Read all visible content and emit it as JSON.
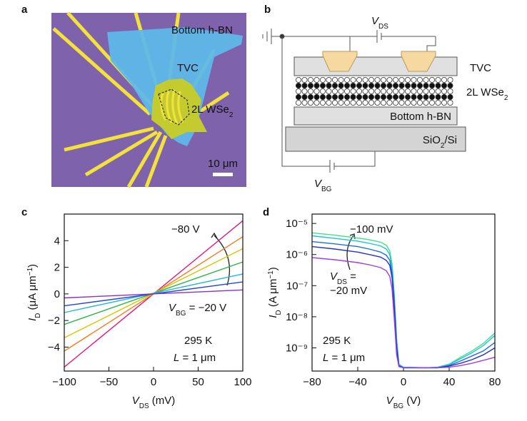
{
  "micrograph": {
    "label": "a",
    "labels": [
      [
        {
          "t": "Bottom h-BN"
        }
      ],
      [
        {
          "t": "TVC"
        }
      ],
      [
        {
          "t": "2L WSe"
        },
        {
          "t": "2",
          "s": "sub"
        }
      ]
    ],
    "scale_bar": [
      {
        "t": "10 μm"
      }
    ]
  },
  "schematic": {
    "label": "b",
    "labels": [
      [
        {
          "t": "V",
          "i": true
        },
        {
          "t": "DS",
          "s": "sub"
        }
      ],
      [
        {
          "t": "TVC"
        }
      ],
      [
        {
          "t": "2L WSe"
        },
        {
          "t": "2",
          "s": "sub"
        }
      ],
      [
        {
          "t": "Bottom h-BN"
        }
      ],
      [
        {
          "t": "SiO"
        },
        {
          "t": "2",
          "s": "sub"
        },
        {
          "t": "/Si"
        }
      ],
      [
        {
          "t": "V",
          "i": true
        },
        {
          "t": "BG",
          "s": "sub"
        }
      ]
    ]
  },
  "chart_data": [
    {
      "type": "line",
      "label": "c",
      "xlabel": [
        {
          "t": "V",
          "i": true
        },
        {
          "t": "DS",
          "s": "sub"
        },
        {
          "t": " (mV)"
        }
      ],
      "ylabel": [
        {
          "t": "I",
          "i": true
        },
        {
          "t": "D",
          "s": "sub"
        },
        {
          "t": " (μA μm"
        },
        {
          "t": "−1",
          "s": "super"
        },
        {
          "t": ")"
        }
      ],
      "x": [
        -100,
        100
      ],
      "series": [
        {
          "color": "#e8177c",
          "values": [
            -5.5,
            5.5
          ]
        },
        {
          "color": "#f47b20",
          "values": [
            -4.3,
            4.3
          ]
        },
        {
          "color": "#d7c600",
          "values": [
            -3.3,
            3.4
          ]
        },
        {
          "color": "#2db34a",
          "values": [
            -2.3,
            2.4
          ]
        },
        {
          "color": "#25b7d8",
          "values": [
            -1.4,
            1.5
          ]
        },
        {
          "color": "#2748d6",
          "values": [
            -0.9,
            0.9
          ]
        },
        {
          "color": "#8b2fc9",
          "values": [
            -0.3,
            0.3
          ]
        }
      ],
      "xlim": [
        -100,
        100
      ],
      "xticks": [
        {
          "value": -100,
          "label": "−100"
        },
        {
          "value": -50,
          "label": "−50"
        },
        0,
        50,
        100
      ],
      "ylim": [
        -5.8,
        6
      ],
      "yticks": [
        {
          "value": -4,
          "label": "−4"
        },
        {
          "value": -2,
          "label": "−2"
        },
        0,
        2,
        4
      ],
      "annotations": [
        [
          {
            "t": "−80 V"
          }
        ],
        [
          {
            "t": "V",
            "i": true
          },
          {
            "t": "BG",
            "s": "sub"
          },
          {
            "t": " = −20 V"
          }
        ],
        [
          {
            "t": "295 K"
          }
        ],
        [
          {
            "t": "L",
            "i": true
          },
          {
            "t": " = 1 μm"
          }
        ]
      ]
    },
    {
      "type": "line",
      "label": "d",
      "log": true,
      "xlabel": [
        {
          "t": "V",
          "i": true
        },
        {
          "t": "BG",
          "s": "sub"
        },
        {
          "t": " (V)"
        }
      ],
      "ylabel": [
        {
          "t": "I",
          "i": true
        },
        {
          "t": "D",
          "s": "sub"
        },
        {
          "t": " (A μm"
        },
        {
          "t": "−1",
          "s": "super"
        },
        {
          "t": ")"
        }
      ],
      "x": [
        -80,
        -60,
        -40,
        -30,
        -20,
        -15,
        -12,
        -10,
        -8,
        -6,
        -4,
        0,
        20,
        30,
        40,
        50,
        60,
        70,
        80
      ],
      "series": [
        {
          "color": "#3de08a",
          "values": [
            5e-06,
            4.2e-06,
            3.4e-06,
            3e-06,
            2.5e-06,
            2e-06,
            1.3e-06,
            5e-07,
            5e-08,
            2e-09,
            3e-10,
            2.4e-10,
            2.3e-10,
            2.4e-10,
            3e-10,
            5e-10,
            8e-10,
            1.4e-09,
            3e-09
          ]
        },
        {
          "color": "#1fc3d0",
          "values": [
            4e-06,
            3.3e-06,
            2.7e-06,
            2.3e-06,
            1.9e-06,
            1.5e-06,
            1e-06,
            4e-07,
            4e-08,
            1.8e-09,
            2.9e-10,
            2.4e-10,
            2.3e-10,
            2.4e-10,
            2.9e-10,
            4.5e-10,
            7e-10,
            1.2e-09,
            2.5e-09
          ]
        },
        {
          "color": "#1e6ee6",
          "values": [
            2.6e-06,
            2.2e-06,
            1.8e-06,
            1.5e-06,
            1.2e-06,
            9.5e-07,
            6.5e-07,
            2.6e-07,
            2.6e-08,
            1.3e-09,
            2.7e-10,
            2.3e-10,
            2.3e-10,
            2.3e-10,
            2.7e-10,
            3.8e-10,
            5.5e-10,
            8e-10,
            1.5e-09
          ]
        },
        {
          "color": "#2532c8",
          "values": [
            1.8e-06,
            1.5e-06,
            1.2e-06,
            1e-06,
            8.3e-07,
            6.5e-07,
            4.5e-07,
            1.8e-07,
            1.8e-08,
            1e-09,
            2.6e-10,
            2.3e-10,
            2.3e-10,
            2.3e-10,
            2.6e-10,
            3.2e-10,
            4.2e-10,
            6e-10,
            1e-09
          ]
        },
        {
          "color": "#a03ee0",
          "values": [
            8e-07,
            6.8e-07,
            5.5e-07,
            4.7e-07,
            3.8e-07,
            3e-07,
            2e-07,
            8e-08,
            8e-09,
            6e-10,
            2.5e-10,
            2.3e-10,
            2.3e-10,
            2.3e-10,
            2.4e-10,
            2.7e-10,
            3.2e-10,
            4e-10,
            5e-10
          ]
        }
      ],
      "xlim": [
        -80,
        80
      ],
      "xticks": [
        {
          "value": -80,
          "label": "−80"
        },
        {
          "value": -40,
          "label": "−40"
        },
        0,
        40,
        80
      ],
      "ylim": [
        1.8e-10,
        2e-05
      ],
      "yticks": [
        {
          "value": 1e-09,
          "label": "10⁻⁹"
        },
        {
          "value": 1e-08,
          "label": "10⁻⁸"
        },
        {
          "value": 1e-07,
          "label": "10⁻⁷"
        },
        {
          "value": 1e-06,
          "label": "10⁻⁶"
        },
        {
          "value": 1e-05,
          "label": "10⁻⁵"
        }
      ],
      "annotations": [
        [
          {
            "t": "−100 mV"
          }
        ],
        [
          {
            "t": "V",
            "i": true
          },
          {
            "t": "DS",
            "s": "sub"
          },
          {
            "t": " ="
          }
        ],
        [
          {
            "t": "−20 mV"
          }
        ],
        [
          {
            "t": "295 K"
          }
        ],
        [
          {
            "t": "L",
            "i": true
          },
          {
            "t": " = 1 μm"
          }
        ]
      ]
    }
  ]
}
